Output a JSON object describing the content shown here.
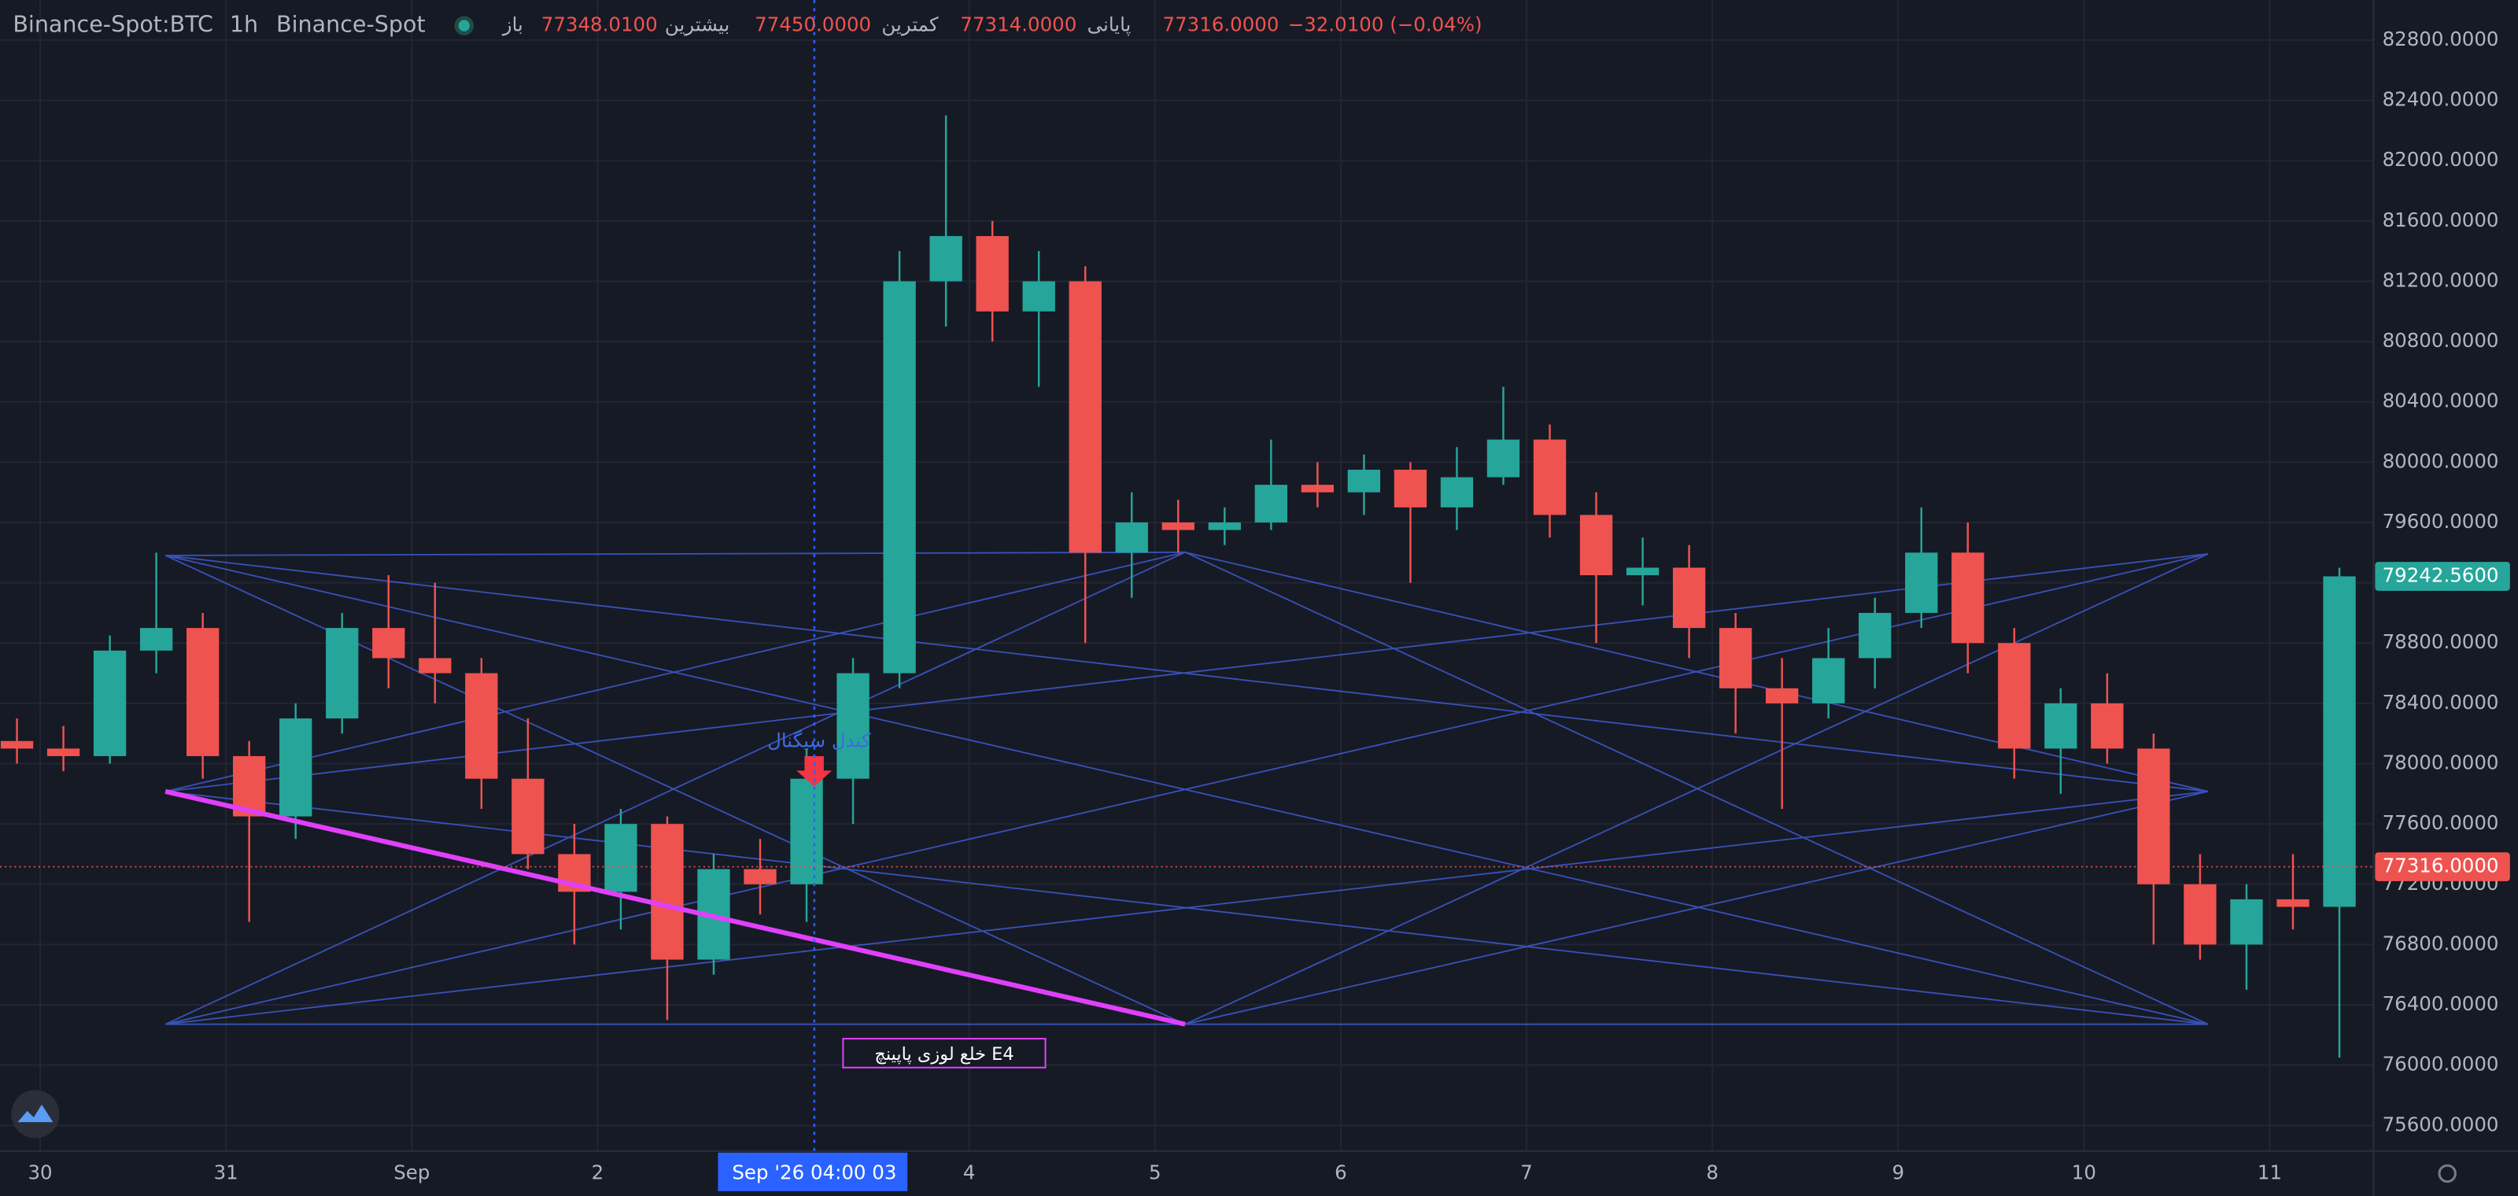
{
  "chart_data": {
    "type": "candlestick",
    "header": {
      "symbol": "Binance-Spot:BTC",
      "interval": "1h",
      "exchange": "Binance-Spot",
      "open_label": "باز",
      "open": "77348.0100",
      "high_label": "بیشترین",
      "high": "77450.0000",
      "low_label": "کمترین",
      "low": "77314.0000",
      "close_label": "پایانی",
      "close": "77316.0000",
      "change": "−32.0100 (−0.04%)"
    },
    "up_color": "#26a69a",
    "down_color": "#ef5350",
    "x": [
      -3,
      3,
      9,
      15,
      21,
      27,
      33,
      39,
      45,
      51,
      57,
      63,
      69,
      75,
      81,
      87,
      93,
      99,
      105,
      111,
      117,
      123,
      129,
      135,
      141,
      147,
      153,
      159,
      165,
      171,
      177,
      183,
      189,
      195,
      201,
      207,
      213,
      219,
      225,
      231,
      237,
      243,
      249,
      255,
      261,
      267,
      273,
      279,
      285,
      291,
      297
    ],
    "open": [
      78150,
      78100,
      78050,
      78750,
      78900,
      78050,
      77650,
      78300,
      78900,
      78700,
      78600,
      77900,
      77400,
      77150,
      77600,
      76700,
      77300,
      77200,
      77900,
      78600,
      81200,
      81500,
      81000,
      81200,
      79400,
      79600,
      79550,
      79600,
      79850,
      79800,
      79950,
      79700,
      79900,
      80150,
      79650,
      79250,
      79300,
      78900,
      78500,
      78400,
      78700,
      79000,
      79400,
      78800,
      78100,
      78400,
      78100,
      77200,
      76800,
      77100,
      77050
    ],
    "high": [
      78300,
      78250,
      78850,
      79400,
      79000,
      78150,
      78400,
      79000,
      79250,
      79200,
      78700,
      78300,
      77600,
      77700,
      77650,
      77400,
      77500,
      78100,
      78700,
      81400,
      82300,
      81600,
      81400,
      81300,
      79800,
      79750,
      79700,
      80150,
      80000,
      80050,
      80000,
      80100,
      80500,
      80250,
      79800,
      79500,
      79450,
      79000,
      78700,
      78900,
      79100,
      79700,
      79600,
      78900,
      78500,
      78600,
      78200,
      77400,
      77200,
      77400,
      79300
    ],
    "low": [
      78000,
      77950,
      78000,
      78600,
      77900,
      76950,
      77500,
      78200,
      78500,
      78400,
      77700,
      77300,
      76800,
      76900,
      76300,
      76600,
      77000,
      76950,
      77600,
      78500,
      80900,
      80800,
      80500,
      78800,
      79100,
      79400,
      79450,
      79550,
      79700,
      79650,
      79200,
      79550,
      79850,
      79500,
      78800,
      79050,
      78700,
      78200,
      77700,
      78300,
      78500,
      78900,
      78600,
      77900,
      77800,
      78000,
      76800,
      76700,
      76500,
      76900,
      76050
    ],
    "close": [
      78100,
      78050,
      78750,
      78900,
      78050,
      77650,
      78300,
      78900,
      78700,
      78600,
      77900,
      77400,
      77150,
      77600,
      76700,
      77300,
      77200,
      77900,
      78600,
      81200,
      81500,
      81000,
      81200,
      79400,
      79600,
      79550,
      79600,
      79850,
      79800,
      79950,
      79700,
      79900,
      80150,
      79650,
      79250,
      79300,
      78900,
      78500,
      78400,
      78700,
      79000,
      79400,
      78800,
      78100,
      78400,
      78100,
      77200,
      76800,
      77100,
      77050,
      79242.56
    ],
    "xlim": [
      -5.19,
      301.4
    ],
    "xticks": [
      {
        "value": 0,
        "label": "30"
      },
      {
        "value": 24,
        "label": "31"
      },
      {
        "value": 48,
        "label": "Sep"
      },
      {
        "value": 72,
        "label": "2"
      },
      {
        "value": 120,
        "label": "4"
      },
      {
        "value": 144,
        "label": "5"
      },
      {
        "value": 168,
        "label": "6"
      },
      {
        "value": 192,
        "label": "7"
      },
      {
        "value": 216,
        "label": "8"
      },
      {
        "value": 240,
        "label": "9"
      },
      {
        "value": 264,
        "label": "10"
      },
      {
        "value": 288,
        "label": "11"
      }
    ],
    "ylim": [
      75430,
      83066
    ],
    "yticks": [
      {
        "value": 75600,
        "label": "75600.0000"
      },
      {
        "value": 76000,
        "label": "76000.0000"
      },
      {
        "value": 76400,
        "label": "76400.0000"
      },
      {
        "value": 76800,
        "label": "76800.0000"
      },
      {
        "value": 77200,
        "label": "77200.0000"
      },
      {
        "value": 77600,
        "label": "77600.0000"
      },
      {
        "value": 78000,
        "label": "78000.0000"
      },
      {
        "value": 78400,
        "label": "78400.0000"
      },
      {
        "value": 78800,
        "label": "78800.0000"
      },
      {
        "value": 79200,
        "label": "79200.0000"
      },
      {
        "value": 79600,
        "label": "79600.0000"
      },
      {
        "value": 80000,
        "label": "80000.0000"
      },
      {
        "value": 80400,
        "label": "80400.0000"
      },
      {
        "value": 80800,
        "label": "80800.0000"
      },
      {
        "value": 81200,
        "label": "81200.0000"
      },
      {
        "value": 81600,
        "label": "81600.0000"
      },
      {
        "value": 82000,
        "label": "82000.0000"
      },
      {
        "value": 82400,
        "label": "82400.0000"
      },
      {
        "value": 82800,
        "label": "82800.0000"
      }
    ],
    "grid": true,
    "crosshair": {
      "x": 100,
      "label": "Sep '26  04:00 03"
    },
    "hover_price": {
      "value": 77316,
      "label": "77316.0000"
    },
    "last_price": {
      "value": 79242.56,
      "label": "79242.5600"
    },
    "annotations": {
      "signal": "کندل سیگنال",
      "pattern": "خلع لوزی پاپینچ E4"
    }
  }
}
